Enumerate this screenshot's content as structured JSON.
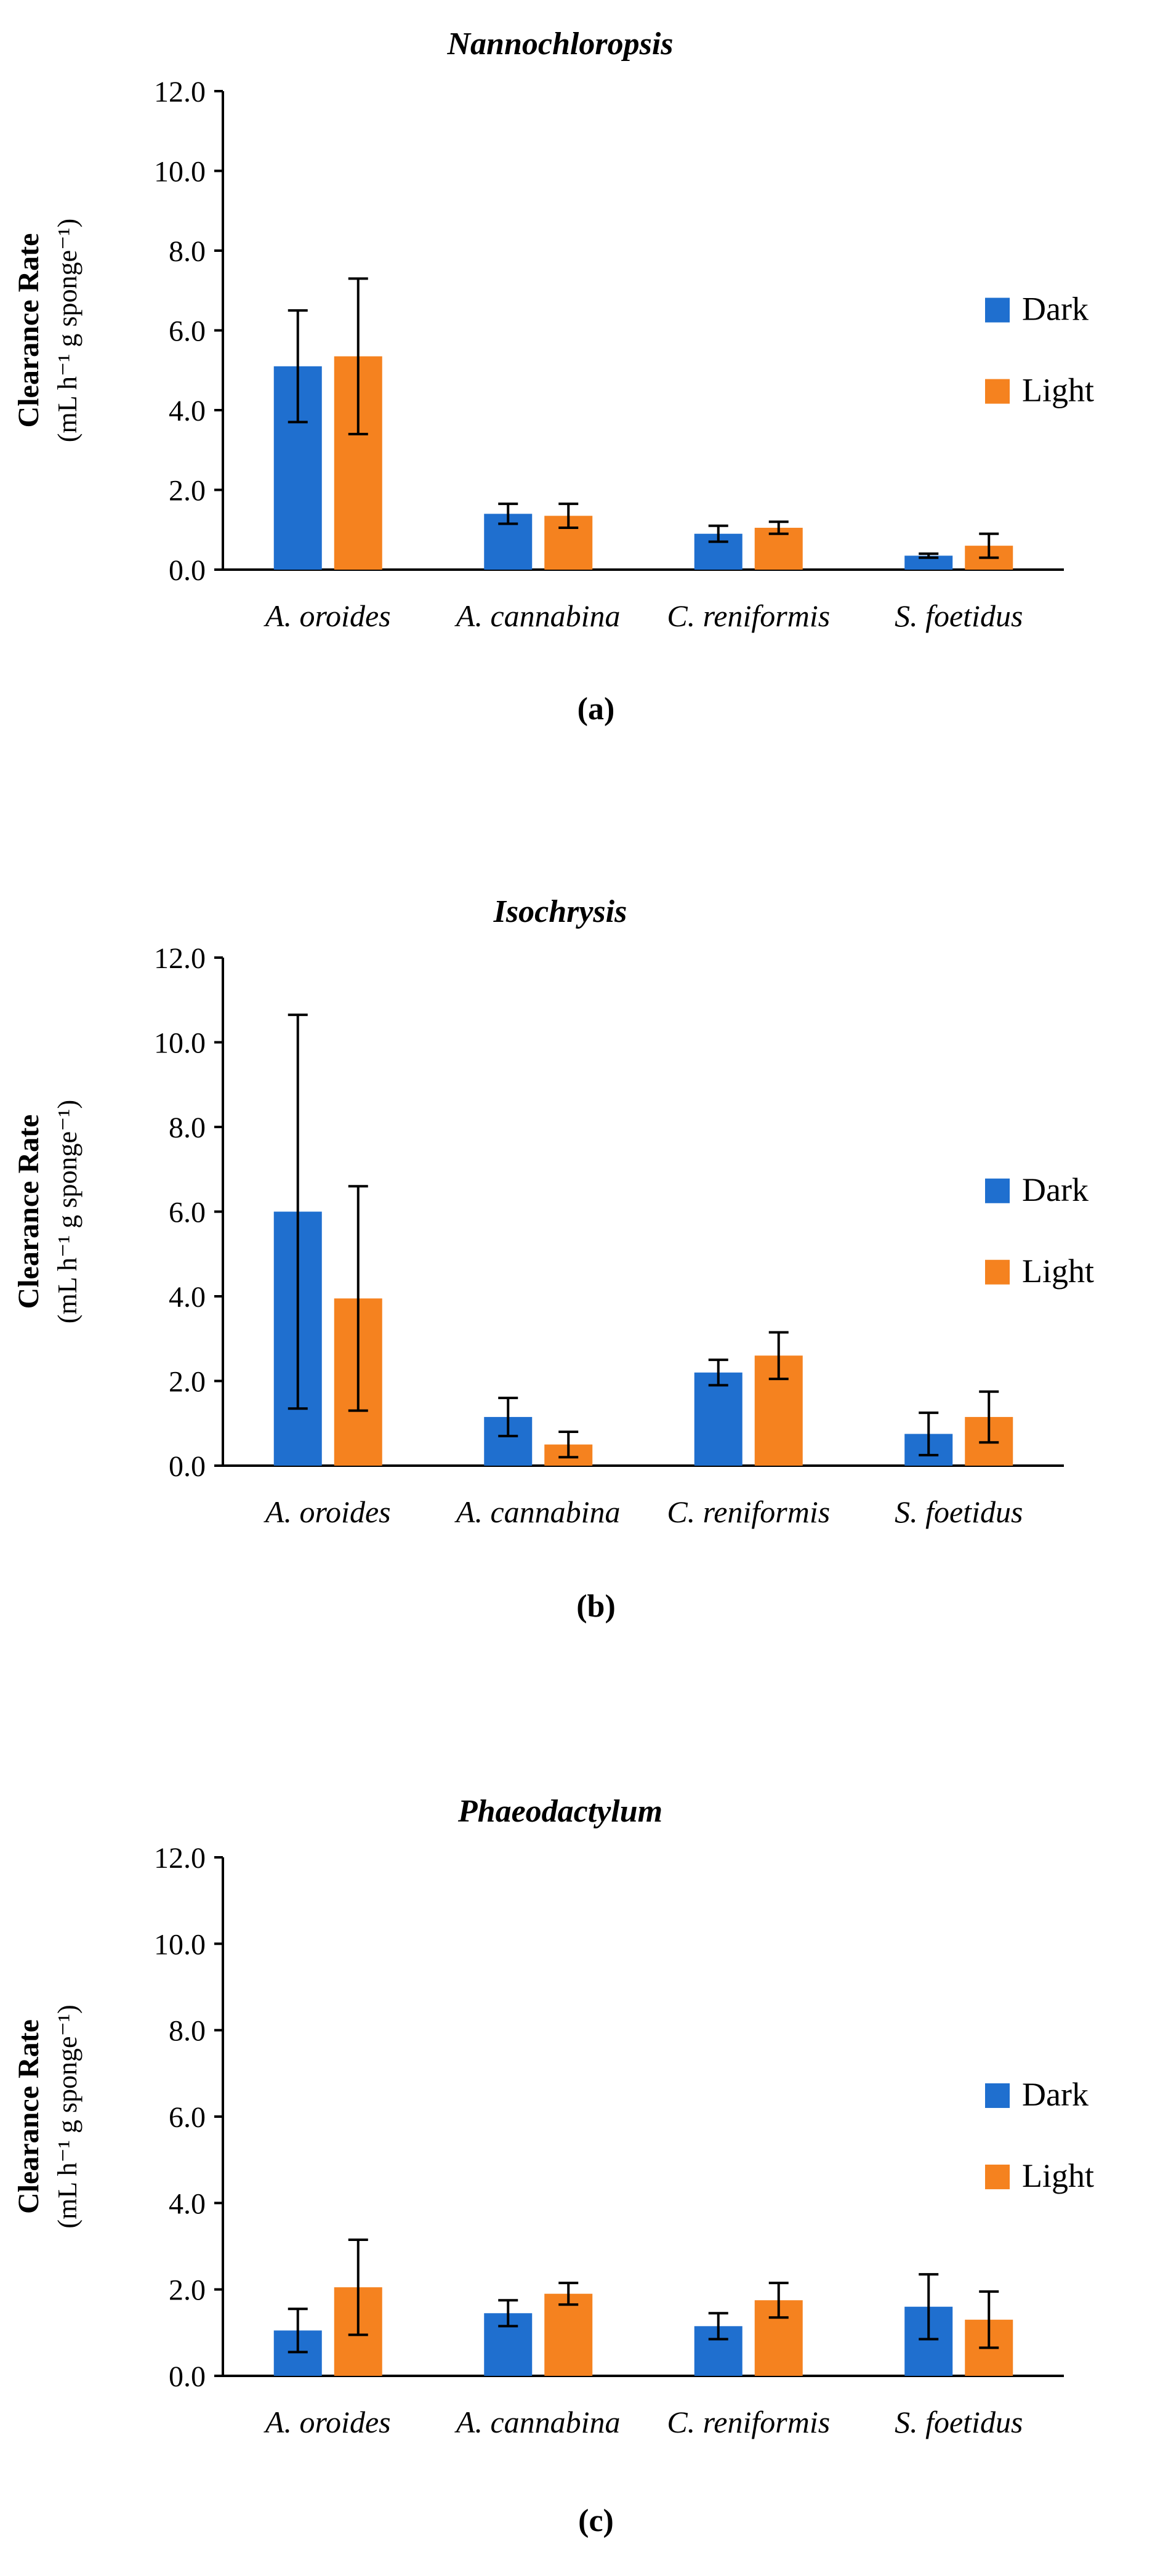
{
  "chart_data": [
    {
      "type": "bar",
      "title": "Nannochloropsis",
      "panel_label": "(a)",
      "ylabel_line1": "Clearance Rate",
      "ylabel_line2": "(mL h⁻¹ g sponge⁻¹)",
      "xlabel": "",
      "ylim": [
        0,
        12
      ],
      "y_ticks": [
        "0.0",
        "2.0",
        "4.0",
        "6.0",
        "8.0",
        "10.0",
        "12.0"
      ],
      "categories": [
        "A. oroides",
        "A. cannabina",
        "C. reniformis",
        "S. foetidus"
      ],
      "series": [
        {
          "name": "Dark",
          "color": "#1f6fcf",
          "values": [
            5.1,
            1.4,
            0.9,
            0.35
          ],
          "errors": [
            1.4,
            0.25,
            0.2,
            0.05
          ]
        },
        {
          "name": "Light",
          "color": "#f5821f",
          "values": [
            5.35,
            1.35,
            1.05,
            0.6
          ],
          "errors": [
            1.95,
            0.3,
            0.15,
            0.3
          ]
        }
      ],
      "legend": "right"
    },
    {
      "type": "bar",
      "title": "Isochrysis",
      "panel_label": "(b)",
      "ylabel_line1": "Clearance Rate",
      "ylabel_line2": "(mL h⁻¹ g sponge⁻¹)",
      "xlabel": "",
      "ylim": [
        0,
        12
      ],
      "y_ticks": [
        "0.0",
        "2.0",
        "4.0",
        "6.0",
        "8.0",
        "10.0",
        "12.0"
      ],
      "categories": [
        "A. oroides",
        "A. cannabina",
        "C. reniformis",
        "S. foetidus"
      ],
      "series": [
        {
          "name": "Dark",
          "color": "#1f6fcf",
          "values": [
            6.0,
            1.15,
            2.2,
            0.75
          ],
          "errors": [
            4.65,
            0.45,
            0.3,
            0.5
          ]
        },
        {
          "name": "Light",
          "color": "#f5821f",
          "values": [
            3.95,
            0.5,
            2.6,
            1.15
          ],
          "errors": [
            2.65,
            0.3,
            0.55,
            0.6
          ]
        }
      ],
      "legend": "right"
    },
    {
      "type": "bar",
      "title": "Phaeodactylum",
      "panel_label": "(c)",
      "ylabel_line1": "Clearance Rate",
      "ylabel_line2": "(mL h⁻¹ g sponge⁻¹)",
      "xlabel": "",
      "ylim": [
        0,
        12
      ],
      "y_ticks": [
        "0.0",
        "2.0",
        "4.0",
        "6.0",
        "8.0",
        "10.0",
        "12.0"
      ],
      "categories": [
        "A. oroides",
        "A. cannabina",
        "C. reniformis",
        "S. foetidus"
      ],
      "series": [
        {
          "name": "Dark",
          "color": "#1f6fcf",
          "values": [
            1.05,
            1.45,
            1.15,
            1.6
          ],
          "errors": [
            0.5,
            0.3,
            0.3,
            0.75
          ]
        },
        {
          "name": "Light",
          "color": "#f5821f",
          "values": [
            2.05,
            1.9,
            1.75,
            1.3
          ],
          "errors": [
            1.1,
            0.25,
            0.4,
            0.65
          ]
        }
      ],
      "legend": "right"
    }
  ]
}
